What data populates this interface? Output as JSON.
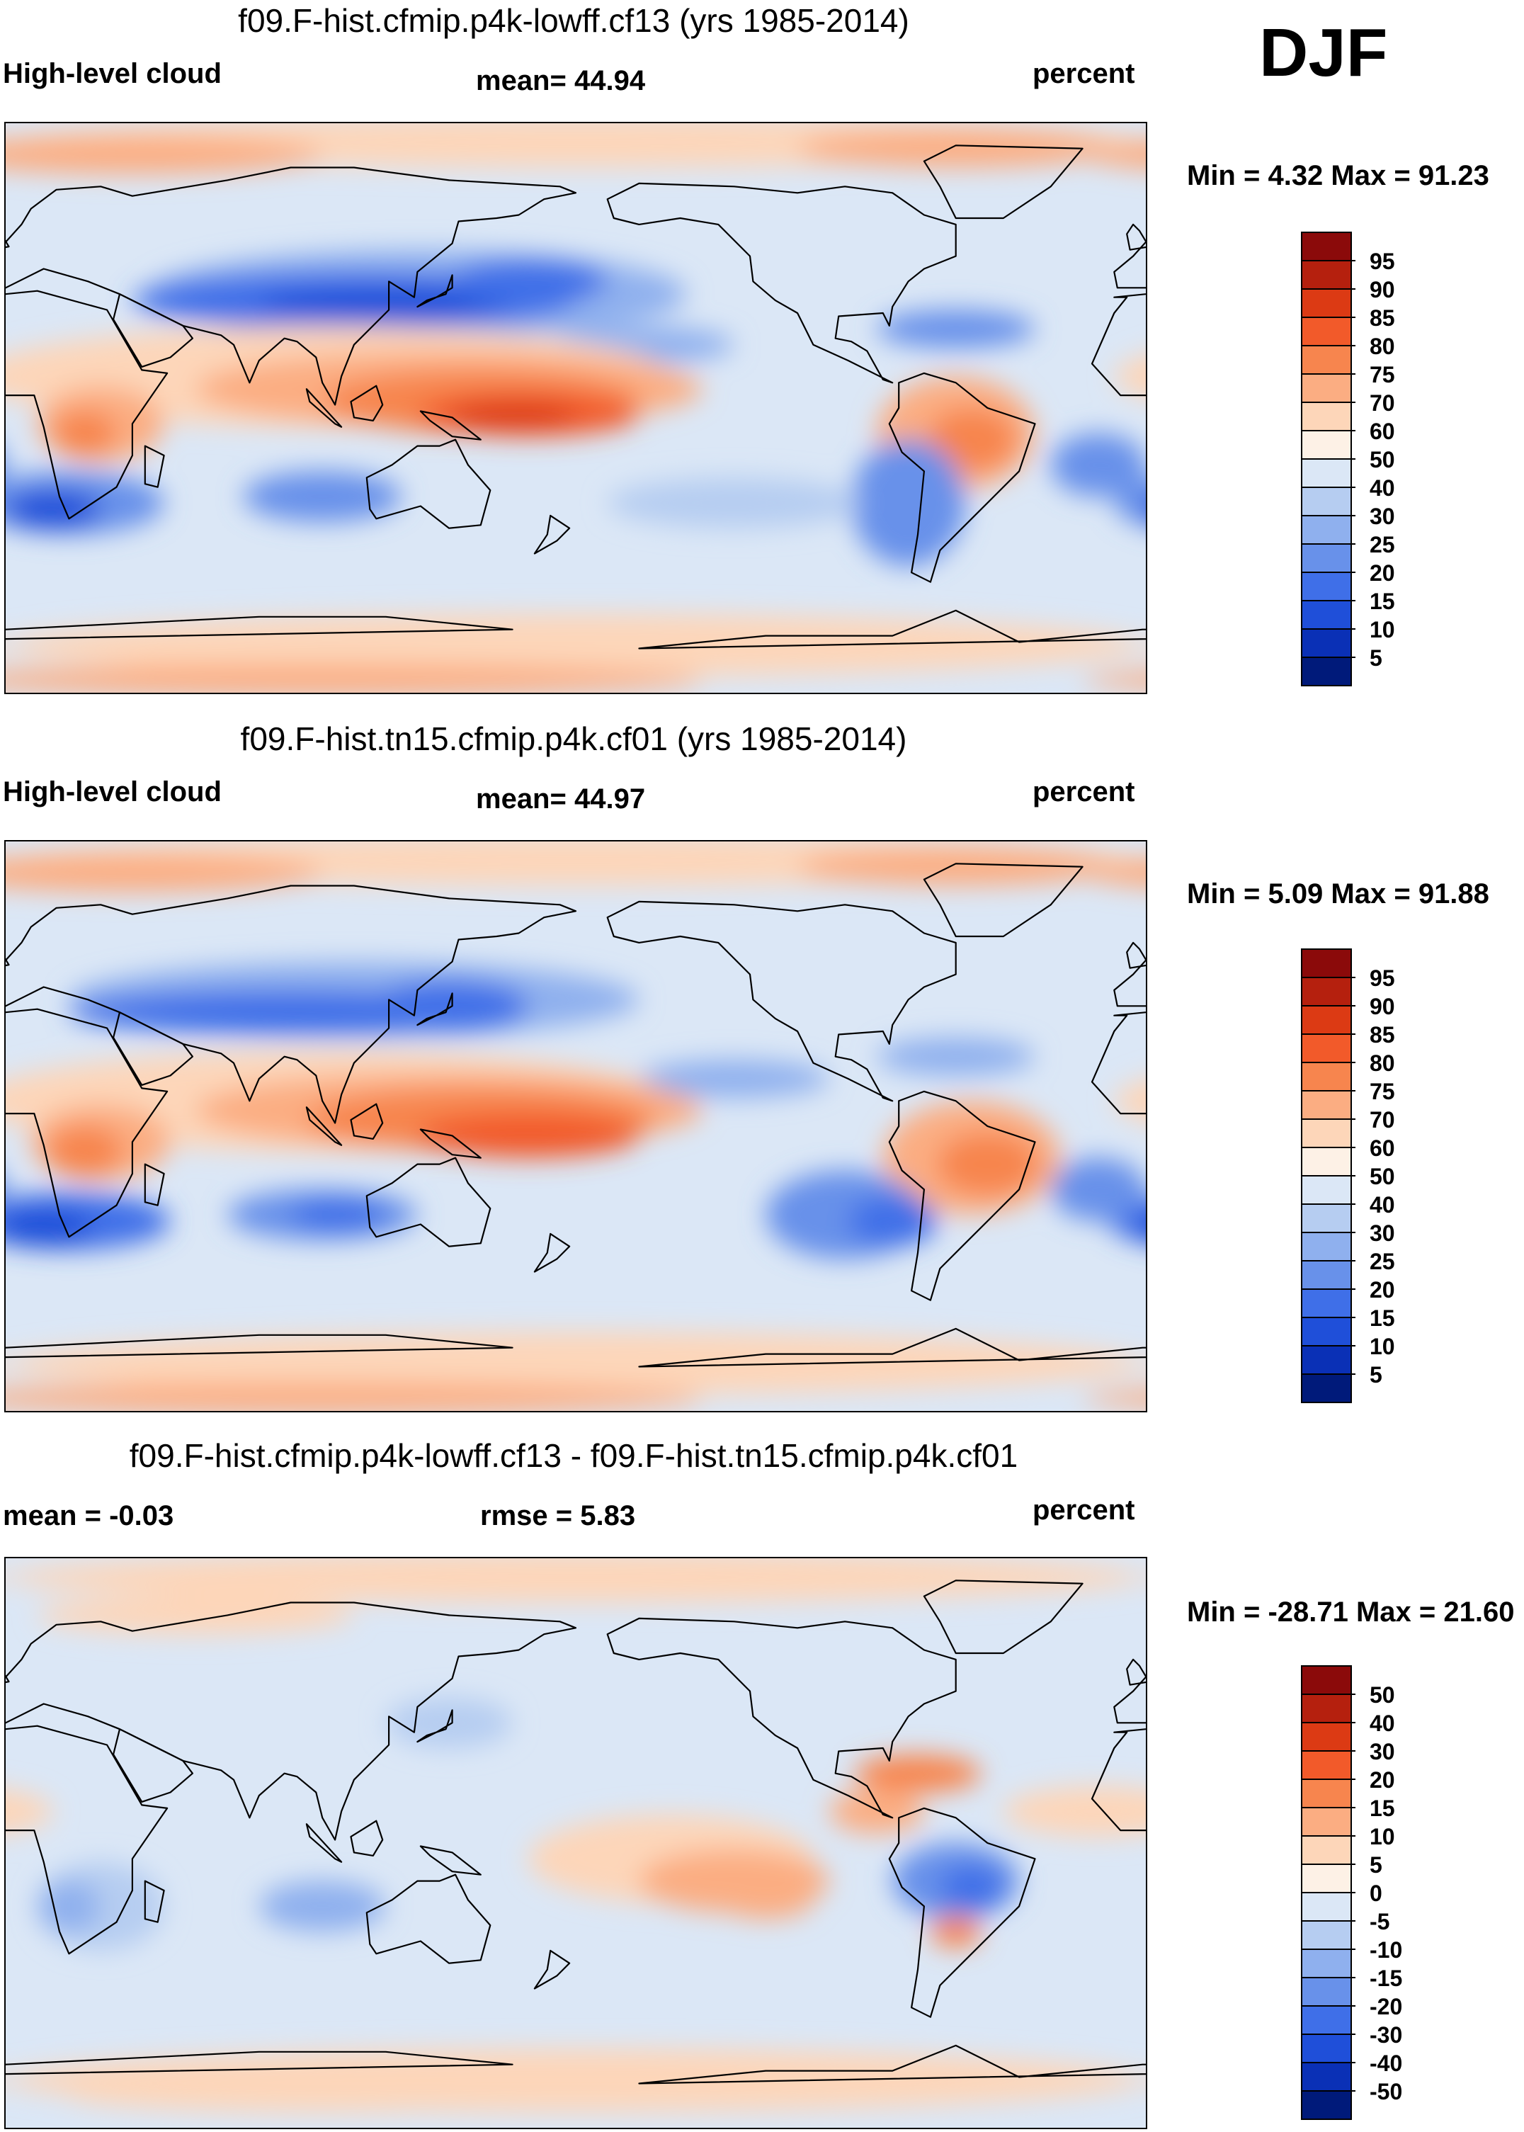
{
  "season": "DJF",
  "chart_data": [
    {
      "type": "heatmap",
      "panel": "test",
      "title": "f09.F-hist.cfmip.p4k-lowff.cf13 (yrs 1985-2014)",
      "left_label": "High-level cloud",
      "center_label": "mean=  44.94",
      "right_label": "percent",
      "minmax_label": "Min =   4.32 Max =  91.23",
      "stats": {
        "mean": 44.94,
        "min": 4.32,
        "max": 91.23
      },
      "units": "percent",
      "colorbar_levels": [
        "95",
        "90",
        "85",
        "80",
        "75",
        "70",
        "60",
        "50",
        "40",
        "30",
        "25",
        "20",
        "15",
        "10",
        "5"
      ],
      "colorbar_colors": [
        "#8b0a0a",
        "#b5200e",
        "#dc3a14",
        "#f25a2a",
        "#f7854e",
        "#fbad82",
        "#fdd6b9",
        "#fdf1e6",
        "#dbe7f6",
        "#b6cdf1",
        "#8fb0ee",
        "#6891ea",
        "#3f6fe8",
        "#1f4fd9",
        "#0a30b6",
        "#001a7a"
      ]
    },
    {
      "type": "heatmap",
      "panel": "reference",
      "title": "f09.F-hist.tn15.cfmip.p4k.cf01 (yrs 1985-2014)",
      "left_label": "High-level cloud",
      "center_label": "mean=  44.97",
      "right_label": "percent",
      "minmax_label": "Min =   5.09 Max =  91.88",
      "stats": {
        "mean": 44.97,
        "min": 5.09,
        "max": 91.88
      },
      "units": "percent",
      "colorbar_levels": [
        "95",
        "90",
        "85",
        "80",
        "75",
        "70",
        "60",
        "50",
        "40",
        "30",
        "25",
        "20",
        "15",
        "10",
        "5"
      ],
      "colorbar_colors": [
        "#8b0a0a",
        "#b5200e",
        "#dc3a14",
        "#f25a2a",
        "#f7854e",
        "#fbad82",
        "#fdd6b9",
        "#fdf1e6",
        "#dbe7f6",
        "#b6cdf1",
        "#8fb0ee",
        "#6891ea",
        "#3f6fe8",
        "#1f4fd9",
        "#0a30b6",
        "#001a7a"
      ]
    },
    {
      "type": "heatmap",
      "panel": "difference",
      "title": "f09.F-hist.cfmip.p4k-lowff.cf13 - f09.F-hist.tn15.cfmip.p4k.cf01",
      "left_label": "mean =  -0.03",
      "center_label": "rmse =    5.83",
      "right_label": "percent",
      "minmax_label": "Min = -28.71 Max =  21.60",
      "stats": {
        "mean": -0.03,
        "rmse": 5.83,
        "min": -28.71,
        "max": 21.6
      },
      "units": "percent",
      "colorbar_levels": [
        "50",
        "40",
        "30",
        "20",
        "15",
        "10",
        "5",
        "0",
        "-5",
        "-10",
        "-15",
        "-20",
        "-30",
        "-40",
        "-50"
      ],
      "colorbar_colors": [
        "#8b0a0a",
        "#b5200e",
        "#dc3a14",
        "#f25a2a",
        "#f7854e",
        "#fbad82",
        "#fdd6b9",
        "#fdf1e6",
        "#dbe7f6",
        "#b6cdf1",
        "#8fb0ee",
        "#6891ea",
        "#3f6fe8",
        "#1f4fd9",
        "#0a30b6",
        "#001a7a"
      ]
    }
  ]
}
